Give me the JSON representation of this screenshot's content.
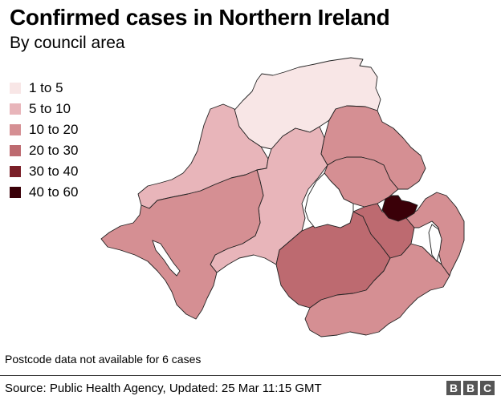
{
  "header": {
    "title": "Confirmed cases in Northern Ireland",
    "subtitle": "By council area"
  },
  "legend": {
    "items": [
      {
        "label": "1 to 5",
        "color": "#f8e6e6"
      },
      {
        "label": "5 to 10",
        "color": "#e8b5ba"
      },
      {
        "label": "10 to 20",
        "color": "#d58f93"
      },
      {
        "label": "20 to 30",
        "color": "#bd6a70"
      },
      {
        "label": "30 to 40",
        "color": "#7a1f28"
      },
      {
        "label": "40 to 60",
        "color": "#3a0008"
      }
    ]
  },
  "map": {
    "lake_color": "#ffffff",
    "border_color": "#222222"
  },
  "footer": {
    "note": "Postcode data not available for 6 cases",
    "source": "Source: Public Health Agency, Updated: 25 Mar 11:15 GMT",
    "logo_letters": [
      "B",
      "B",
      "C"
    ]
  }
}
